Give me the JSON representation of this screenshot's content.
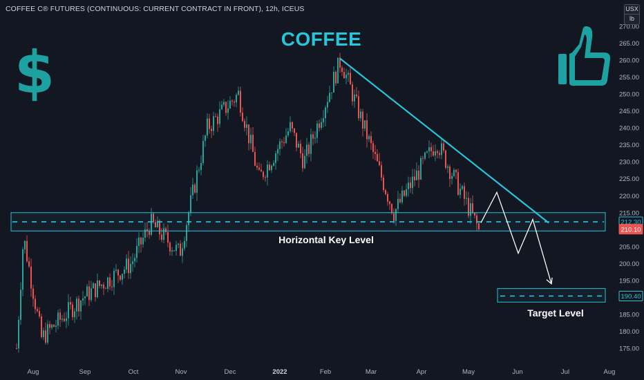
{
  "header": {
    "title": "COFFEE C® FUTURES (CONTINUOUS: CURRENT CONTRACT IN FRONT), 12h, ICEUS",
    "unit_top": "USX",
    "unit_bottom": "lb"
  },
  "annotations": {
    "title": "COFFEE",
    "key_level": "Horizontal Key Level",
    "target_level": "Target Level",
    "dollar_icon": "dollar-sign-icon",
    "thumb_icon": "thumbs-up-icon"
  },
  "colors": {
    "background": "#131722",
    "accent": "#26c6da",
    "up": "#26a69a",
    "down": "#ef5350",
    "text": "#d1d4dc",
    "price_box_bg": "#131722"
  },
  "chart_data": {
    "type": "candlestick",
    "ylim": [
      170,
      272
    ],
    "y_ticks": [
      "175.00",
      "180.00",
      "185.00",
      "190.00",
      "195.00",
      "200.00",
      "205.00",
      "210.00",
      "215.00",
      "220.00",
      "225.00",
      "230.00",
      "235.00",
      "240.00",
      "245.00",
      "250.00",
      "255.00",
      "260.00",
      "265.00",
      "270.00"
    ],
    "x_ticks": [
      "Aug",
      "Sep",
      "Oct",
      "Nov",
      "Dec",
      "2022",
      "Feb",
      "Mar",
      "Apr",
      "May",
      "Jun",
      "Jul",
      "Aug"
    ],
    "price_labels": [
      {
        "value": "212.30",
        "kind": "level"
      },
      {
        "value": "210.10",
        "kind": "last"
      },
      {
        "value": "190.40",
        "kind": "target"
      }
    ],
    "key_level_zone": [
      209.6,
      215.0
    ],
    "key_level_line": 212.3,
    "target_zone": [
      188.6,
      192.6
    ],
    "target_line": 190.4,
    "trendline": {
      "from": [
        "Feb 2022",
        260.5
      ],
      "to": [
        "Jun 2022",
        212.0
      ]
    },
    "projected_path": [
      212.0,
      221.0,
      203.0,
      213.0,
      194.0
    ],
    "candles_summary": {
      "start": "Jul 2021",
      "end": "May 2022",
      "anchors": [
        {
          "label": "late Jul",
          "close": 175
        },
        {
          "label": "Jul spike",
          "close": 208
        },
        {
          "label": "Aug",
          "close": 178
        },
        {
          "label": "Sep",
          "close": 190
        },
        {
          "label": "Oct",
          "close": 200
        },
        {
          "label": "Oct high",
          "close": 212
        },
        {
          "label": "Nov",
          "close": 203
        },
        {
          "label": "Nov breakout",
          "close": 240
        },
        {
          "label": "Dec",
          "close": 250
        },
        {
          "label": "Dec pullback",
          "close": 225
        },
        {
          "label": "Jan 2022",
          "close": 240
        },
        {
          "label": "Jan low",
          "close": 230
        },
        {
          "label": "Feb",
          "close": 260
        },
        {
          "label": "Mar",
          "close": 215
        },
        {
          "label": "Apr",
          "close": 236
        },
        {
          "label": "May",
          "close": 210.1
        }
      ]
    }
  }
}
